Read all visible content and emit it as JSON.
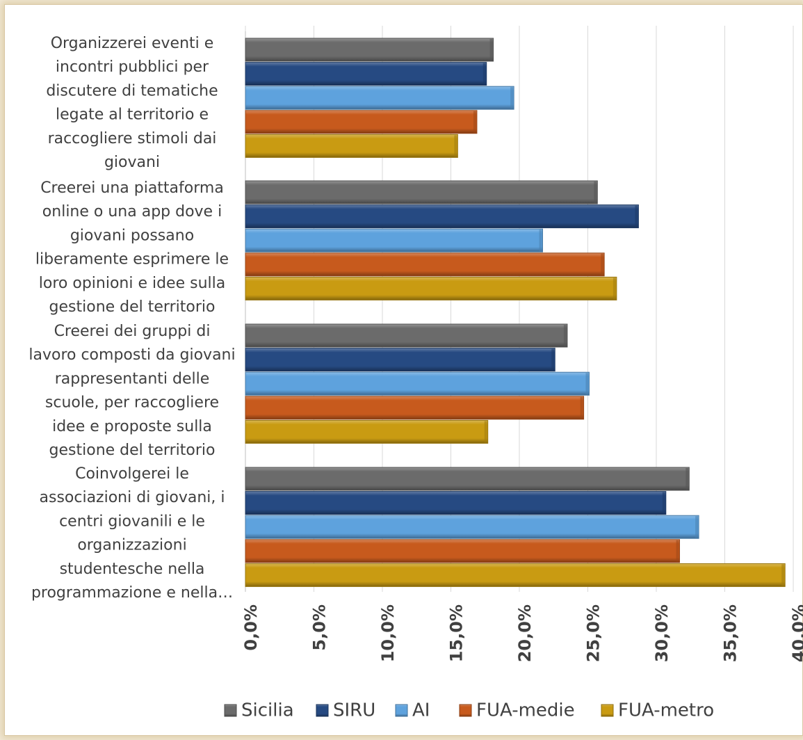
{
  "chart_data": {
    "type": "bar",
    "orientation": "horizontal",
    "categories": [
      "Organizzerei eventi e incontri pubblici per discutere di tematiche legate al territorio e raccogliere stimoli dai giovani",
      "Creerei una piattaforma online o una app dove i giovani possano liberamente esprimere le loro opinioni e idee sulla gestione del territorio",
      "Creerei dei gruppi di lavoro composti da giovani rappresentanti delle scuole, per raccogliere idee e proposte sulla gestione del territorio",
      "Coinvolgerei le associazioni di giovani, i centri giovanili e le organizzazioni studentesche nella programmazione e nella…"
    ],
    "category_lines": [
      [
        "Organizzerei eventi e",
        "incontri pubblici per",
        "discutere di tematiche",
        "legate al territorio e",
        "raccogliere stimoli dai",
        "giovani"
      ],
      [
        "Creerei una piattaforma",
        "online o una app dove i",
        "giovani possano",
        "liberamente esprimere le",
        "loro opinioni e idee sulla",
        "gestione del territorio"
      ],
      [
        "Creerei dei gruppi di",
        "lavoro composti da giovani",
        "rappresentanti delle",
        "scuole, per raccogliere",
        "idee e proposte sulla",
        "gestione del territorio"
      ],
      [
        "Coinvolgerei le",
        "associazioni di giovani, i",
        "centri giovanili e le",
        "organizzazioni",
        "studentesche nella",
        "programmazione e nella…"
      ]
    ],
    "series": [
      {
        "name": "Sicilia",
        "color": "#6b6b6b",
        "values": [
          18.1,
          25.7,
          23.5,
          32.4
        ]
      },
      {
        "name": "SIRU",
        "color": "#264a82",
        "values": [
          17.6,
          28.7,
          22.6,
          30.7
        ]
      },
      {
        "name": "AI",
        "color": "#5ea2dd",
        "values": [
          19.6,
          21.7,
          25.1,
          33.1
        ]
      },
      {
        "name": "FUA-medie",
        "color": "#c75a1d",
        "values": [
          16.9,
          26.2,
          24.7,
          31.7
        ]
      },
      {
        "name": "FUA-metro",
        "color": "#c99b12",
        "values": [
          15.5,
          27.1,
          17.7,
          39.4
        ]
      }
    ],
    "x_ticks": [
      "0,0%",
      "5,0%",
      "10,0%",
      "15,0%",
      "20,0%",
      "25,0%",
      "30,0%",
      "35,0%",
      "40,0%"
    ],
    "xlim": [
      0,
      40
    ],
    "xlabel": "",
    "ylabel": "",
    "title": "",
    "grid": "vertical",
    "legend_position": "bottom"
  }
}
